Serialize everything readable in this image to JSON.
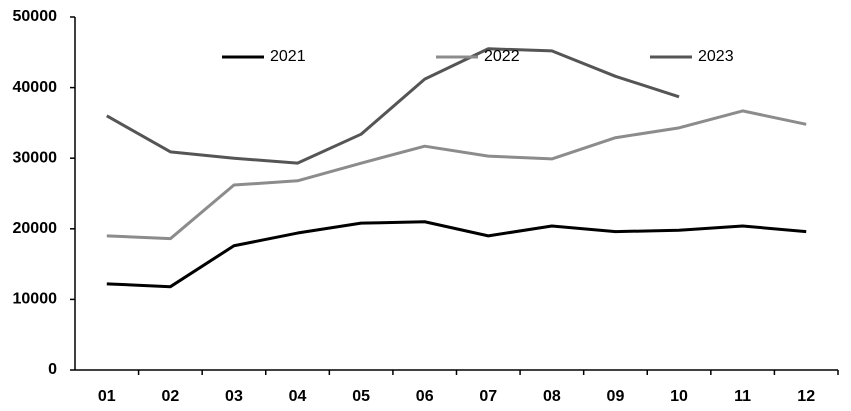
{
  "chart_data": {
    "type": "line",
    "categories": [
      "01",
      "02",
      "03",
      "04",
      "05",
      "06",
      "07",
      "08",
      "09",
      "10",
      "11",
      "12"
    ],
    "series": [
      {
        "name": "2021",
        "color": "#000000",
        "values": [
          12200,
          11800,
          17600,
          19400,
          20800,
          21000,
          19000,
          20400,
          19600,
          19800,
          20400,
          19600
        ]
      },
      {
        "name": "2022",
        "color": "#8c8c8c",
        "values": [
          19000,
          18600,
          26200,
          26800,
          29300,
          31700,
          30300,
          29900,
          32900,
          34300,
          36700,
          34800
        ]
      },
      {
        "name": "2023",
        "color": "#555555",
        "values": [
          36000,
          30900,
          30000,
          29300,
          33400,
          41200,
          45500,
          45200,
          41600,
          38700,
          null,
          null
        ]
      }
    ],
    "ylim": [
      0,
      50000
    ],
    "yticks": [
      0,
      10000,
      20000,
      30000,
      40000,
      50000
    ],
    "grid": false,
    "legend": "top"
  }
}
